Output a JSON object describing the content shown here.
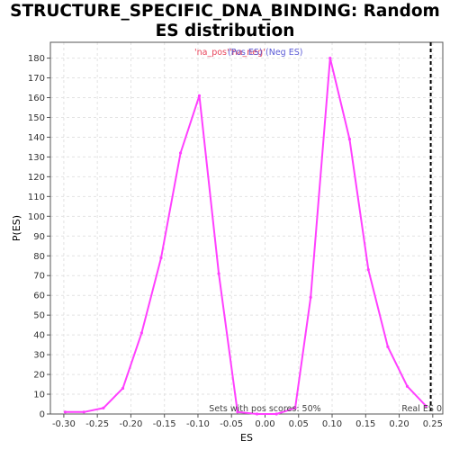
{
  "chart_data": {
    "type": "line",
    "title": "STRUCTURE_SPECIFIC_DNA_BINDING: Random ES distribution",
    "xlabel": "ES",
    "ylabel": "P(ES)",
    "xlim": [
      -0.32,
      0.265
    ],
    "ylim": [
      0,
      188
    ],
    "x_ticks": [
      -0.3,
      -0.25,
      -0.2,
      -0.15,
      -0.1,
      -0.05,
      0.0,
      0.05,
      0.1,
      0.15,
      0.2,
      0.25
    ],
    "x_tick_labels": [
      "-0.30",
      "-0.25",
      "-0.20",
      "-0.15",
      "-0.10",
      "-0.05",
      "0.00",
      "0.05",
      "0.10",
      "0.15",
      "0.20",
      "0.25"
    ],
    "y_ticks": [
      0,
      10,
      20,
      30,
      40,
      50,
      60,
      70,
      80,
      90,
      100,
      110,
      120,
      130,
      140,
      150,
      160,
      170,
      180
    ],
    "grid": true,
    "legend": {
      "placement": "top-center",
      "entries": [
        {
          "label": "'na_pos'",
          "color": "#e8435a"
        },
        {
          "label": "'na_neg'",
          "color": "#e8435a"
        },
        {
          "label": "(Pos ES)",
          "color": "#5b5bd6"
        },
        {
          "label": "(Neg ES)",
          "color": "#5b5bd6"
        }
      ]
    },
    "series": [
      {
        "color": "#ff40ff",
        "x": [
          -0.298,
          -0.27,
          -0.241,
          -0.212,
          -0.184,
          -0.155,
          -0.126,
          -0.098,
          -0.069,
          -0.041,
          -0.012,
          0.017,
          0.045,
          0.068,
          0.097,
          0.126,
          0.154,
          0.183,
          0.212,
          0.24
        ],
        "y": [
          1,
          1,
          3,
          13,
          41,
          79,
          132,
          161,
          71,
          1,
          0,
          0,
          3,
          59,
          180,
          139,
          73,
          34,
          14,
          4
        ]
      }
    ],
    "real_es": {
      "x": 0.247,
      "label": "Real ES 0"
    },
    "annotation": "Sets with pos scores: 50%"
  }
}
